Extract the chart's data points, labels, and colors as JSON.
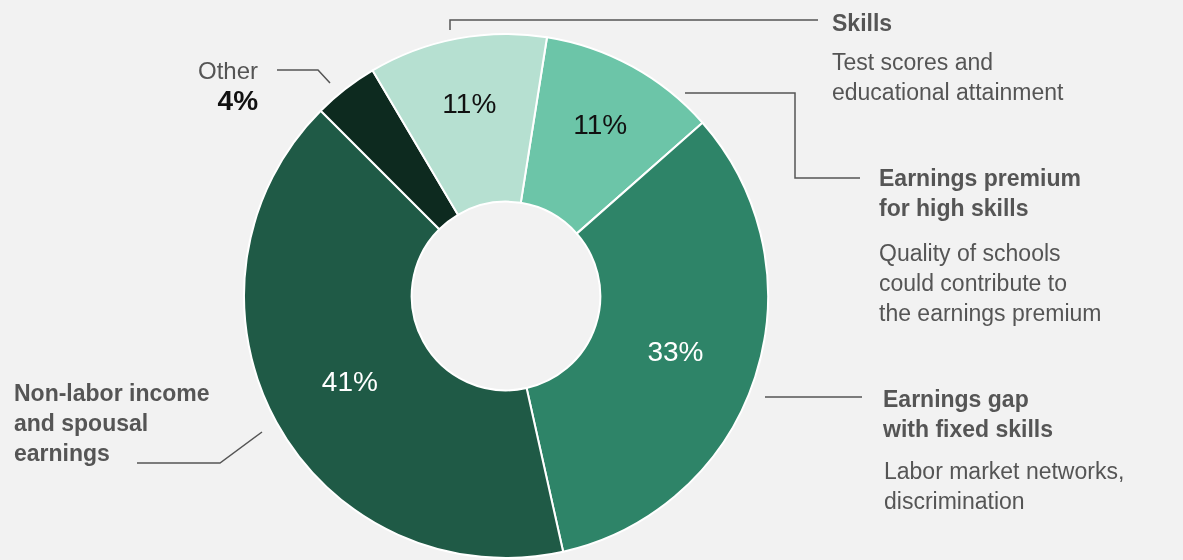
{
  "chart_data": {
    "type": "donut",
    "categories": [
      "Earnings premium\nfor high skills",
      "Earnings gap\nwith fixed skills",
      "Non-labor income\nand spousal\nearnings",
      "Other",
      "Skills"
    ],
    "values": [
      11,
      33,
      41,
      4,
      11
    ],
    "colors": [
      "#6cc5a8",
      "#2e8468",
      "#1f5a46",
      "#0d2a1f",
      "#b6e0d1"
    ],
    "value_labels": [
      "11%",
      "33%",
      "41%",
      "4%",
      "11%"
    ],
    "annotations": [
      "Quality of schools\ncould contribute to\nthe earnings premium",
      "Labor market networks,\ndiscrimination",
      null,
      null,
      "Test scores and\neducational attainment"
    ],
    "legend": false
  }
}
